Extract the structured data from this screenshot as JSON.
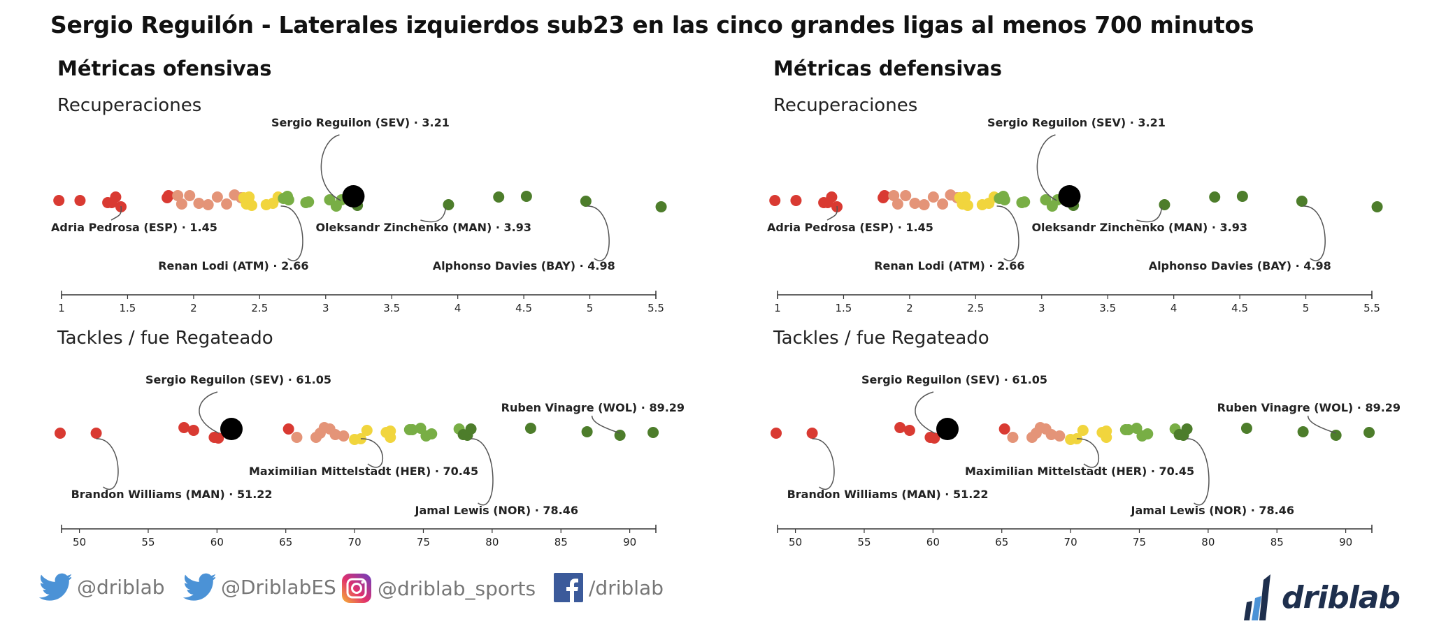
{
  "page": {
    "title": "Sergio Reguilón - Laterales izquierdos sub23 en las cinco grandes ligas al menos 700 minutos"
  },
  "palette": {
    "red": "#d93a32",
    "salmon": "#e49478",
    "yellow": "#f1d53d",
    "lightgreen": "#78ae45",
    "darkgreen": "#4d7d2b",
    "highlight": "#000000",
    "axis": "#333333"
  },
  "panels": [
    {
      "id": "left",
      "title": "Métricas ofensivas"
    },
    {
      "id": "right",
      "title": "Métricas defensivas"
    }
  ],
  "chart_data": [
    {
      "type": "scatter",
      "panel": "left",
      "title": "Recuperaciones",
      "xlim": [
        1,
        5.5
      ],
      "ticks": [
        1,
        1.5,
        2,
        2.5,
        3,
        3.5,
        4,
        4.5,
        5,
        5.5
      ],
      "tick_labels": [
        "1",
        "1.5",
        "2",
        "2.5",
        "3",
        "3.5",
        "4",
        "4.5",
        "5",
        "5.5"
      ],
      "highlight": {
        "label": "Sergio Reguilon (SEV) · 3.21",
        "value": 3.21
      },
      "annotations": [
        {
          "label": "Adria Pedrosa (ESP) · 1.45",
          "value": 1.45
        },
        {
          "label": "Renan Lodi (ATM) · 2.66",
          "value": 2.66
        },
        {
          "label": "Oleksandr Zinchenko (MAN) · 3.93",
          "value": 3.93
        },
        {
          "label": "Alphonso Davies (BAY) · 4.98",
          "value": 4.98
        }
      ],
      "points": [
        [
          0.98,
          "red"
        ],
        [
          1.14,
          "red"
        ],
        [
          1.35,
          "red"
        ],
        [
          1.41,
          "red"
        ],
        [
          1.45,
          "red"
        ],
        [
          1.38,
          "red"
        ],
        [
          1.8,
          "red"
        ],
        [
          1.81,
          "red"
        ],
        [
          1.88,
          "salmon"
        ],
        [
          1.91,
          "salmon"
        ],
        [
          1.97,
          "salmon"
        ],
        [
          2.04,
          "salmon"
        ],
        [
          2.11,
          "salmon"
        ],
        [
          2.18,
          "salmon"
        ],
        [
          2.25,
          "salmon"
        ],
        [
          2.31,
          "salmon"
        ],
        [
          2.36,
          "salmon"
        ],
        [
          2.38,
          "yellow"
        ],
        [
          2.4,
          "yellow"
        ],
        [
          2.42,
          "yellow"
        ],
        [
          2.44,
          "yellow"
        ],
        [
          2.55,
          "yellow"
        ],
        [
          2.6,
          "yellow"
        ],
        [
          2.64,
          "yellow"
        ],
        [
          2.68,
          "lightgreen"
        ],
        [
          2.71,
          "lightgreen"
        ],
        [
          2.72,
          "lightgreen"
        ],
        [
          2.85,
          "lightgreen"
        ],
        [
          2.87,
          "lightgreen"
        ],
        [
          3.03,
          "lightgreen"
        ],
        [
          3.08,
          "lightgreen"
        ],
        [
          3.12,
          "lightgreen"
        ],
        [
          3.24,
          "darkgreen"
        ],
        [
          3.93,
          "darkgreen"
        ],
        [
          4.31,
          "darkgreen"
        ],
        [
          4.52,
          "darkgreen"
        ],
        [
          4.97,
          "darkgreen"
        ],
        [
          5.54,
          "darkgreen"
        ]
      ]
    },
    {
      "type": "scatter",
      "panel": "left",
      "title": "Tackles / fue Regateado",
      "xlim": [
        48.7,
        91.9
      ],
      "ticks": [
        50,
        55,
        60,
        65,
        70,
        75,
        80,
        85,
        90
      ],
      "tick_labels": [
        "50",
        "55",
        "60",
        "65",
        "70",
        "75",
        "80",
        "85",
        "90"
      ],
      "highlight": {
        "label": "Sergio Reguilon (SEV) · 61.05",
        "value": 61.05
      },
      "annotations": [
        {
          "label": "Brandon Williams (MAN) · 51.22",
          "value": 51.22
        },
        {
          "label": "Maximilian Mittelstadt (HER) · 70.45",
          "value": 70.45
        },
        {
          "label": "Jamal Lewis (NOR) · 78.46",
          "value": 78.46
        },
        {
          "label": "Ruben Vinagre (WOL) · 89.29",
          "value": 89.29
        }
      ],
      "points": [
        [
          48.6,
          "red"
        ],
        [
          51.22,
          "red"
        ],
        [
          57.6,
          "red"
        ],
        [
          58.3,
          "red"
        ],
        [
          59.8,
          "red"
        ],
        [
          60.1,
          "red"
        ],
        [
          65.2,
          "red"
        ],
        [
          65.8,
          "salmon"
        ],
        [
          67.2,
          "salmon"
        ],
        [
          67.5,
          "salmon"
        ],
        [
          67.8,
          "salmon"
        ],
        [
          68.2,
          "salmon"
        ],
        [
          68.6,
          "salmon"
        ],
        [
          69.2,
          "salmon"
        ],
        [
          70.0,
          "yellow"
        ],
        [
          70.45,
          "yellow"
        ],
        [
          70.9,
          "yellow"
        ],
        [
          72.3,
          "yellow"
        ],
        [
          72.6,
          "yellow"
        ],
        [
          72.6,
          "yellow"
        ],
        [
          74.0,
          "lightgreen"
        ],
        [
          74.2,
          "lightgreen"
        ],
        [
          74.8,
          "lightgreen"
        ],
        [
          75.2,
          "lightgreen"
        ],
        [
          75.6,
          "lightgreen"
        ],
        [
          77.6,
          "lightgreen"
        ],
        [
          77.9,
          "darkgreen"
        ],
        [
          78.2,
          "darkgreen"
        ],
        [
          78.46,
          "darkgreen"
        ],
        [
          82.8,
          "darkgreen"
        ],
        [
          86.9,
          "darkgreen"
        ],
        [
          89.29,
          "darkgreen"
        ],
        [
          91.7,
          "darkgreen"
        ]
      ]
    },
    {
      "type": "scatter",
      "panel": "right",
      "title": "Recuperaciones",
      "xlim": [
        1,
        5.5
      ],
      "ticks": [
        1,
        1.5,
        2,
        2.5,
        3,
        3.5,
        4,
        4.5,
        5,
        5.5
      ],
      "tick_labels": [
        "1",
        "1.5",
        "2",
        "2.5",
        "3",
        "3.5",
        "4",
        "4.5",
        "5",
        "5.5"
      ],
      "highlight": {
        "label": "Sergio Reguilon (SEV) · 3.21",
        "value": 3.21
      },
      "annotations": [
        {
          "label": "Adria Pedrosa (ESP) · 1.45",
          "value": 1.45
        },
        {
          "label": "Renan Lodi (ATM) · 2.66",
          "value": 2.66
        },
        {
          "label": "Oleksandr Zinchenko (MAN) · 3.93",
          "value": 3.93
        },
        {
          "label": "Alphonso Davies (BAY) · 4.98",
          "value": 4.98
        }
      ],
      "points": [
        [
          0.98,
          "red"
        ],
        [
          1.14,
          "red"
        ],
        [
          1.35,
          "red"
        ],
        [
          1.41,
          "red"
        ],
        [
          1.45,
          "red"
        ],
        [
          1.38,
          "red"
        ],
        [
          1.8,
          "red"
        ],
        [
          1.81,
          "red"
        ],
        [
          1.88,
          "salmon"
        ],
        [
          1.91,
          "salmon"
        ],
        [
          1.97,
          "salmon"
        ],
        [
          2.04,
          "salmon"
        ],
        [
          2.11,
          "salmon"
        ],
        [
          2.18,
          "salmon"
        ],
        [
          2.25,
          "salmon"
        ],
        [
          2.31,
          "salmon"
        ],
        [
          2.36,
          "salmon"
        ],
        [
          2.38,
          "yellow"
        ],
        [
          2.4,
          "yellow"
        ],
        [
          2.42,
          "yellow"
        ],
        [
          2.44,
          "yellow"
        ],
        [
          2.55,
          "yellow"
        ],
        [
          2.6,
          "yellow"
        ],
        [
          2.64,
          "yellow"
        ],
        [
          2.68,
          "lightgreen"
        ],
        [
          2.71,
          "lightgreen"
        ],
        [
          2.72,
          "lightgreen"
        ],
        [
          2.85,
          "lightgreen"
        ],
        [
          2.87,
          "lightgreen"
        ],
        [
          3.03,
          "lightgreen"
        ],
        [
          3.08,
          "lightgreen"
        ],
        [
          3.12,
          "lightgreen"
        ],
        [
          3.24,
          "darkgreen"
        ],
        [
          3.93,
          "darkgreen"
        ],
        [
          4.31,
          "darkgreen"
        ],
        [
          4.52,
          "darkgreen"
        ],
        [
          4.97,
          "darkgreen"
        ],
        [
          5.54,
          "darkgreen"
        ]
      ]
    },
    {
      "type": "scatter",
      "panel": "right",
      "title": "Tackles / fue Regateado",
      "xlim": [
        48.7,
        91.9
      ],
      "ticks": [
        50,
        55,
        60,
        65,
        70,
        75,
        80,
        85,
        90
      ],
      "tick_labels": [
        "50",
        "55",
        "60",
        "65",
        "70",
        "75",
        "80",
        "85",
        "90"
      ],
      "highlight": {
        "label": "Sergio Reguilon (SEV) · 61.05",
        "value": 61.05
      },
      "annotations": [
        {
          "label": "Brandon Williams (MAN) · 51.22",
          "value": 51.22
        },
        {
          "label": "Maximilian Mittelstadt (HER) · 70.45",
          "value": 70.45
        },
        {
          "label": "Jamal Lewis (NOR) · 78.46",
          "value": 78.46
        },
        {
          "label": "Ruben Vinagre (WOL) · 89.29",
          "value": 89.29
        }
      ],
      "points": [
        [
          48.6,
          "red"
        ],
        [
          51.22,
          "red"
        ],
        [
          57.6,
          "red"
        ],
        [
          58.3,
          "red"
        ],
        [
          59.8,
          "red"
        ],
        [
          60.1,
          "red"
        ],
        [
          65.2,
          "red"
        ],
        [
          65.8,
          "salmon"
        ],
        [
          67.2,
          "salmon"
        ],
        [
          67.5,
          "salmon"
        ],
        [
          67.8,
          "salmon"
        ],
        [
          68.2,
          "salmon"
        ],
        [
          68.6,
          "salmon"
        ],
        [
          69.2,
          "salmon"
        ],
        [
          70.0,
          "yellow"
        ],
        [
          70.45,
          "yellow"
        ],
        [
          70.9,
          "yellow"
        ],
        [
          72.3,
          "yellow"
        ],
        [
          72.6,
          "yellow"
        ],
        [
          72.6,
          "yellow"
        ],
        [
          74.0,
          "lightgreen"
        ],
        [
          74.2,
          "lightgreen"
        ],
        [
          74.8,
          "lightgreen"
        ],
        [
          75.2,
          "lightgreen"
        ],
        [
          75.6,
          "lightgreen"
        ],
        [
          77.6,
          "lightgreen"
        ],
        [
          77.9,
          "darkgreen"
        ],
        [
          78.2,
          "darkgreen"
        ],
        [
          78.46,
          "darkgreen"
        ],
        [
          82.8,
          "darkgreen"
        ],
        [
          86.9,
          "darkgreen"
        ],
        [
          89.29,
          "darkgreen"
        ],
        [
          91.7,
          "darkgreen"
        ]
      ]
    }
  ],
  "footer": {
    "twitter_1": {
      "icon": "twitter-bird-icon",
      "label": "@driblab"
    },
    "twitter_2": {
      "icon": "twitter-bird-icon",
      "label": "@DriblabES"
    },
    "instagram": {
      "icon": "instagram-icon",
      "label": "@driblab_sports"
    },
    "facebook": {
      "icon": "facebook-icon",
      "label": "/driblab"
    },
    "brand": {
      "icon": "driblab-logo-icon",
      "label": "driblab"
    }
  }
}
